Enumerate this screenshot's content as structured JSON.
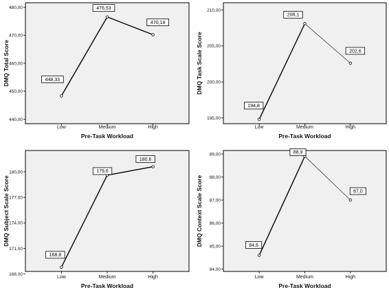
{
  "chart_data": [
    {
      "type": "line",
      "categories": [
        "Low",
        "Medium",
        "High"
      ],
      "values": [
        448.33,
        476.53,
        470.18
      ],
      "value_labels": [
        "448,33",
        "476,53",
        "470,18"
      ],
      "xlabel": "Pre-Task Workload",
      "ylabel": "DMQ Total Score",
      "ylim": [
        438.4,
        481.6
      ],
      "yticks": [
        440,
        450,
        460,
        470,
        480
      ],
      "ytick_labels": [
        "440,00",
        "450,00",
        "460,00",
        "470,00",
        "480,00"
      ],
      "grid": false,
      "line_style": [
        "thick",
        "thick"
      ]
    },
    {
      "type": "line",
      "categories": [
        "Low",
        "Medium",
        "High"
      ],
      "values": [
        194.8,
        208.1,
        202.6
      ],
      "value_labels": [
        "194,8",
        "208,1",
        "202,6"
      ],
      "xlabel": "Pre-Task Workload",
      "ylabel": "DMQ Task Scale Score",
      "ylim": [
        194.2,
        211.0
      ],
      "yticks": [
        195,
        200,
        205,
        210
      ],
      "ytick_labels": [
        "195,00",
        "200,00",
        "205,00",
        "210,00"
      ],
      "grid": false,
      "line_style": [
        "thick",
        "thin"
      ]
    },
    {
      "type": "line",
      "categories": [
        "Low",
        "Medium",
        "High"
      ],
      "values": [
        168.8,
        179.6,
        180.6
      ],
      "value_labels": [
        "168,8",
        "179,6",
        "180,6"
      ],
      "xlabel": "Pre-Task Workload",
      "ylabel": "DMQ Subject Scale Score",
      "ylim": [
        168.3,
        182.5
      ],
      "yticks": [
        168,
        171,
        174,
        177,
        180
      ],
      "ytick_labels": [
        "168,00",
        "171,00",
        "174,00",
        "177,00",
        "180,00"
      ],
      "grid": false,
      "line_style": [
        "thick",
        "thick"
      ]
    },
    {
      "type": "line",
      "categories": [
        "Low",
        "Medium",
        "High"
      ],
      "values": [
        84.6,
        88.9,
        87.0
      ],
      "value_labels": [
        "84,6",
        "88,9",
        "87,0"
      ],
      "xlabel": "Pre-Task Workload",
      "ylabel": "DMQ Context Scale Score",
      "ylim": [
        83.9,
        89.15
      ],
      "yticks": [
        84,
        85,
        86,
        87,
        88,
        89
      ],
      "ytick_labels": [
        "84,00",
        "85,00",
        "86,00",
        "87,00",
        "88,00",
        "89,00"
      ],
      "grid": false,
      "line_style": [
        "thick",
        "thin"
      ]
    }
  ],
  "colors": {
    "plot_background": "#f0f0f0",
    "frame": "#000000",
    "line": "#000000",
    "label_box_fill": "#ffffff"
  }
}
